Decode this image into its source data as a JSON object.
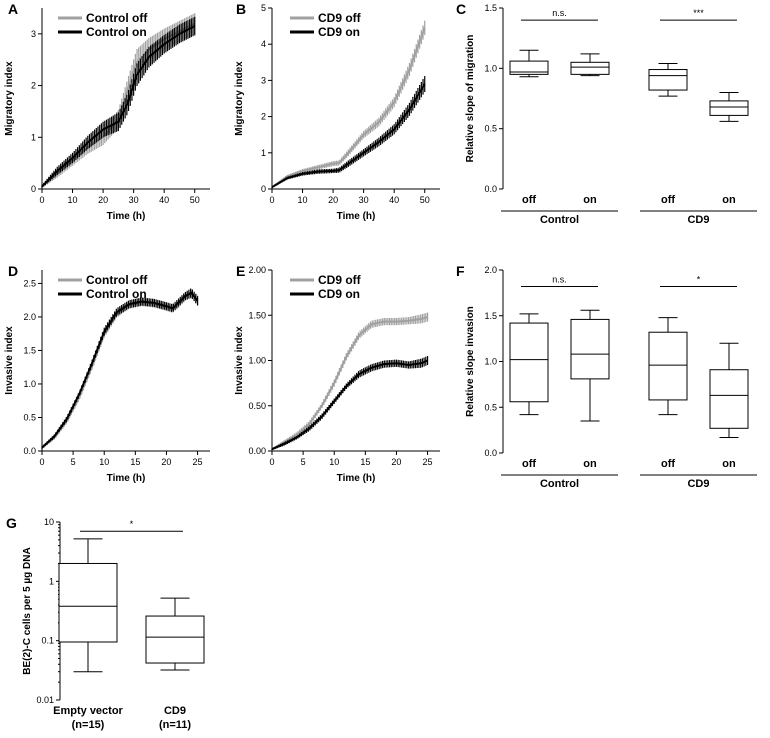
{
  "chart_data": [
    {
      "id": "A",
      "type": "line",
      "panel_label": "A",
      "xlabel": "Time (h)",
      "ylabel": "Migratory index",
      "xlim": [
        0,
        55
      ],
      "ylim": [
        0,
        3.5
      ],
      "xticks": [
        0,
        10,
        20,
        30,
        40,
        50
      ],
      "yticks": [
        0,
        1,
        2,
        3
      ],
      "ytick_labels": [
        "0",
        "1",
        "2",
        "3"
      ],
      "series": [
        {
          "name": "Control off",
          "color": "#a0a0a0",
          "x": [
            0,
            5,
            10,
            15,
            20,
            25,
            28,
            31,
            35,
            40,
            45,
            50
          ],
          "y": [
            0.05,
            0.3,
            0.55,
            0.8,
            1.0,
            1.35,
            1.9,
            2.45,
            2.7,
            2.9,
            3.05,
            3.2
          ],
          "err": [
            0.03,
            0.08,
            0.1,
            0.12,
            0.15,
            0.18,
            0.22,
            0.25,
            0.22,
            0.2,
            0.2,
            0.2
          ]
        },
        {
          "name": "Control on",
          "color": "#000000",
          "x": [
            0,
            5,
            10,
            15,
            20,
            25,
            28,
            31,
            35,
            40,
            45,
            50
          ],
          "y": [
            0.05,
            0.35,
            0.6,
            0.9,
            1.15,
            1.3,
            1.65,
            2.2,
            2.55,
            2.8,
            3.0,
            3.15
          ],
          "err": [
            0.03,
            0.08,
            0.1,
            0.13,
            0.15,
            0.18,
            0.2,
            0.22,
            0.2,
            0.18,
            0.18,
            0.18
          ]
        }
      ]
    },
    {
      "id": "B",
      "type": "line",
      "panel_label": "B",
      "xlabel": "Time (h)",
      "ylabel": "Migratory index",
      "xlim": [
        0,
        55
      ],
      "ylim": [
        0,
        5
      ],
      "xticks": [
        0,
        10,
        20,
        30,
        40,
        50
      ],
      "yticks": [
        0,
        1,
        2,
        3,
        4,
        5
      ],
      "ytick_labels": [
        "0",
        "1",
        "2",
        "3",
        "4",
        "5"
      ],
      "series": [
        {
          "name": "CD9 off",
          "color": "#a0a0a0",
          "x": [
            0,
            5,
            10,
            15,
            20,
            22,
            25,
            30,
            35,
            40,
            45,
            50
          ],
          "y": [
            0.05,
            0.35,
            0.5,
            0.6,
            0.7,
            0.72,
            1.0,
            1.5,
            1.85,
            2.4,
            3.3,
            4.45
          ],
          "err": [
            0.02,
            0.04,
            0.05,
            0.06,
            0.07,
            0.07,
            0.09,
            0.1,
            0.12,
            0.14,
            0.18,
            0.2
          ]
        },
        {
          "name": "CD9 on",
          "color": "#000000",
          "x": [
            0,
            5,
            10,
            15,
            20,
            22,
            25,
            30,
            35,
            40,
            45,
            50
          ],
          "y": [
            0.05,
            0.3,
            0.42,
            0.48,
            0.5,
            0.52,
            0.7,
            1.0,
            1.3,
            1.65,
            2.2,
            2.9
          ],
          "err": [
            0.02,
            0.04,
            0.05,
            0.06,
            0.06,
            0.07,
            0.09,
            0.1,
            0.12,
            0.14,
            0.18,
            0.22
          ]
        }
      ]
    },
    {
      "id": "C",
      "type": "box",
      "panel_label": "C",
      "ylabel": "Relative slope of migration",
      "ylim": [
        0,
        1.5
      ],
      "yticks": [
        0,
        0.5,
        1,
        1.5
      ],
      "ytick_labels": [
        "0.0",
        "0.5",
        "1.0",
        "1.5"
      ],
      "categories": [
        "off",
        "on",
        "off",
        "on"
      ],
      "groups": [
        {
          "label": "Control",
          "members": [
            0,
            1
          ]
        },
        {
          "label": "CD9",
          "members": [
            2,
            3
          ]
        }
      ],
      "boxes": [
        {
          "min": 0.93,
          "q1": 0.95,
          "median": 0.97,
          "q3": 1.06,
          "max": 1.15
        },
        {
          "min": 0.94,
          "q1": 0.95,
          "median": 1.01,
          "q3": 1.05,
          "max": 1.12
        },
        {
          "min": 0.77,
          "q1": 0.82,
          "median": 0.94,
          "q3": 0.99,
          "max": 1.04
        },
        {
          "min": 0.56,
          "q1": 0.61,
          "median": 0.68,
          "q3": 0.73,
          "max": 0.8
        }
      ],
      "significance": [
        {
          "between": [
            0,
            1
          ],
          "y": 1.4,
          "text": "n.s."
        },
        {
          "between": [
            2,
            3
          ],
          "y": 1.4,
          "text": "***"
        }
      ]
    },
    {
      "id": "D",
      "type": "line",
      "panel_label": "D",
      "xlabel": "Time (h)",
      "ylabel": "Invasive index",
      "xlim": [
        0,
        27
      ],
      "ylim": [
        0,
        2.7
      ],
      "xticks": [
        0,
        5,
        10,
        15,
        20,
        25
      ],
      "yticks": [
        0,
        0.5,
        1,
        1.5,
        2,
        2.5
      ],
      "ytick_labels": [
        "0.0",
        "0.5",
        "1.0",
        "1.5",
        "2.0",
        "2.5"
      ],
      "series": [
        {
          "name": "Control off",
          "color": "#a0a0a0",
          "x": [
            0,
            2,
            4,
            6,
            8,
            10,
            12,
            14,
            16,
            18,
            20,
            21,
            22,
            23,
            24,
            25
          ],
          "y": [
            0.05,
            0.2,
            0.45,
            0.8,
            1.25,
            1.75,
            2.05,
            2.18,
            2.22,
            2.2,
            2.15,
            2.12,
            2.2,
            2.3,
            2.35,
            2.25
          ],
          "err": [
            0.02,
            0.03,
            0.04,
            0.04,
            0.05,
            0.06,
            0.06,
            0.06,
            0.06,
            0.06,
            0.06,
            0.06,
            0.06,
            0.06,
            0.07,
            0.07
          ]
        },
        {
          "name": "Control on",
          "color": "#000000",
          "x": [
            0,
            2,
            4,
            6,
            8,
            10,
            12,
            14,
            16,
            18,
            20,
            21,
            22,
            23,
            24,
            25
          ],
          "y": [
            0.05,
            0.22,
            0.48,
            0.85,
            1.3,
            1.78,
            2.07,
            2.19,
            2.23,
            2.21,
            2.16,
            2.13,
            2.22,
            2.31,
            2.36,
            2.24
          ],
          "err": [
            0.02,
            0.03,
            0.04,
            0.04,
            0.05,
            0.06,
            0.06,
            0.06,
            0.06,
            0.06,
            0.06,
            0.06,
            0.06,
            0.06,
            0.07,
            0.07
          ]
        }
      ]
    },
    {
      "id": "E",
      "type": "line",
      "panel_label": "E",
      "xlabel": "Time (h)",
      "ylabel": "Invasive index",
      "xlim": [
        0,
        27
      ],
      "ylim": [
        0,
        2
      ],
      "xticks": [
        0,
        5,
        10,
        15,
        20,
        25
      ],
      "yticks": [
        0,
        0.5,
        1,
        1.5,
        2
      ],
      "ytick_labels": [
        "0.00",
        "0.50",
        "1.00",
        "1.50",
        "2.00"
      ],
      "series": [
        {
          "name": "CD9 off",
          "color": "#a0a0a0",
          "x": [
            0,
            2,
            4,
            6,
            8,
            10,
            12,
            14,
            16,
            18,
            20,
            22,
            24,
            25
          ],
          "y": [
            0.02,
            0.1,
            0.18,
            0.3,
            0.5,
            0.75,
            1.05,
            1.28,
            1.4,
            1.43,
            1.43,
            1.44,
            1.46,
            1.48
          ],
          "err": [
            0.01,
            0.02,
            0.03,
            0.03,
            0.03,
            0.04,
            0.04,
            0.04,
            0.04,
            0.04,
            0.04,
            0.04,
            0.05,
            0.05
          ]
        },
        {
          "name": "CD9 on",
          "color": "#000000",
          "x": [
            0,
            2,
            4,
            6,
            8,
            10,
            12,
            14,
            16,
            18,
            20,
            22,
            24,
            25
          ],
          "y": [
            0.02,
            0.08,
            0.15,
            0.25,
            0.38,
            0.55,
            0.72,
            0.85,
            0.92,
            0.96,
            0.97,
            0.95,
            0.97,
            1.0
          ],
          "err": [
            0.01,
            0.02,
            0.02,
            0.03,
            0.03,
            0.03,
            0.03,
            0.04,
            0.04,
            0.04,
            0.04,
            0.04,
            0.05,
            0.05
          ]
        }
      ]
    },
    {
      "id": "F",
      "type": "box",
      "panel_label": "F",
      "ylabel": "Relative slope  invasion",
      "ylim": [
        0,
        2
      ],
      "yticks": [
        0,
        0.5,
        1,
        1.5,
        2
      ],
      "ytick_labels": [
        "0.0",
        "0.5",
        "1.0",
        "1.5",
        "2.0"
      ],
      "categories": [
        "off",
        "on",
        "off",
        "on"
      ],
      "groups": [
        {
          "label": "Control",
          "members": [
            0,
            1
          ]
        },
        {
          "label": "CD9",
          "members": [
            2,
            3
          ]
        }
      ],
      "boxes": [
        {
          "min": 0.42,
          "q1": 0.56,
          "median": 1.02,
          "q3": 1.42,
          "max": 1.52
        },
        {
          "min": 0.35,
          "q1": 0.81,
          "median": 1.08,
          "q3": 1.46,
          "max": 1.56
        },
        {
          "min": 0.42,
          "q1": 0.58,
          "median": 0.96,
          "q3": 1.32,
          "max": 1.48
        },
        {
          "min": 0.17,
          "q1": 0.27,
          "median": 0.63,
          "q3": 0.91,
          "max": 1.2
        }
      ],
      "significance": [
        {
          "between": [
            0,
            1
          ],
          "y": 1.82,
          "text": "n.s."
        },
        {
          "between": [
            2,
            3
          ],
          "y": 1.82,
          "text": "*"
        }
      ]
    },
    {
      "id": "G",
      "type": "box",
      "panel_label": "G",
      "scale": "log",
      "ylabel": "BE(2)-C cells per 5 µg DNA",
      "ylim": [
        0.01,
        10
      ],
      "yticks": [
        0.01,
        0.1,
        1,
        10
      ],
      "ytick_labels": [
        "0.01",
        "0.1",
        "1",
        "10"
      ],
      "categories": [
        "Empty vector",
        "CD9"
      ],
      "category_sublabels": [
        "(n=15)",
        "(n=11)"
      ],
      "boxes": [
        {
          "min": 0.03,
          "q1": 0.095,
          "median": 0.38,
          "q3": 2.0,
          "max": 5.2
        },
        {
          "min": 0.032,
          "q1": 0.042,
          "median": 0.115,
          "q3": 0.26,
          "max": 0.52
        }
      ],
      "significance": [
        {
          "between": [
            0,
            1
          ],
          "y": 7.0,
          "text": "*"
        }
      ]
    }
  ]
}
